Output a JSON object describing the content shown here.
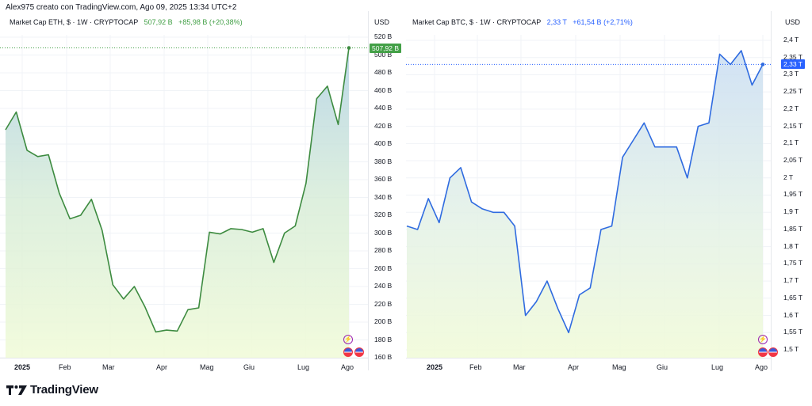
{
  "header": {
    "credit": "Alex975 creato con TradingView.com, Ago 09, 2025 13:34 UTC+2"
  },
  "footer": {
    "logo_text": "TradingView"
  },
  "panels": [
    {
      "legend": {
        "symbol": "Market Cap ETH, $ · 1W · CRYPTOCAP",
        "value": "507,92 B",
        "change": "+85,98 B (+20,38%)",
        "color": "#43a047"
      },
      "currency": "USD",
      "price_tag": "507,92 B",
      "line_color": "#3d8b40",
      "y_ticks": [
        "520 B",
        "500 B",
        "480 B",
        "460 B",
        "440 B",
        "420 B",
        "400 B",
        "380 B",
        "360 B",
        "340 B",
        "320 B",
        "300 B",
        "280 B",
        "260 B",
        "240 B",
        "220 B",
        "200 B",
        "180 B",
        "160 B"
      ],
      "x_ticks": [
        "2025",
        "Feb",
        "Mar",
        "Apr",
        "Mag",
        "Giu",
        "Lug",
        "Ago"
      ]
    },
    {
      "legend": {
        "symbol": "Market Cap BTC, $ · 1W · CRYPTOCAP",
        "value": "2,33 T",
        "change": "+61,54 B (+2,71%)",
        "color": "#2962ff"
      },
      "currency": "USD",
      "price_tag": "2,33 T",
      "line_color": "#2f6be0",
      "y_ticks": [
        "2,4 T",
        "2,35 T",
        "2,3 T",
        "2,25 T",
        "2,2 T",
        "2,15 T",
        "2,1 T",
        "2,05 T",
        "2 T",
        "1,95 T",
        "1,9 T",
        "1,85 T",
        "1,8 T",
        "1,75 T",
        "1,7 T",
        "1,65 T",
        "1,6 T",
        "1,55 T",
        "1,5 T"
      ],
      "x_ticks": [
        "2025",
        "Feb",
        "Mar",
        "Apr",
        "Mag",
        "Giu",
        "Lug",
        "Ago"
      ]
    }
  ],
  "chart_data": [
    {
      "type": "area",
      "title": "Market Cap ETH, $ · 1W · CRYPTOCAP",
      "xlabel": "",
      "ylabel": "USD",
      "unit": "B",
      "ylim": [
        160,
        525
      ],
      "x_tick_labels": [
        "2025",
        "Feb",
        "Mar",
        "Apr",
        "Mag",
        "Giu",
        "Lug",
        "Ago"
      ],
      "last_value": 507.92,
      "change": 85.98,
      "change_pct": 20.38,
      "series": [
        {
          "name": "ETH Market Cap (B USD)",
          "values": [
            416,
            436,
            393,
            386,
            388,
            345,
            316,
            320,
            338,
            303,
            242,
            226,
            240,
            217,
            189,
            191,
            190,
            214,
            216,
            301,
            299,
            305,
            304,
            301,
            305,
            267,
            300,
            308,
            356,
            451,
            465,
            422,
            508
          ]
        }
      ]
    },
    {
      "type": "area",
      "title": "Market Cap BTC, $ · 1W · CRYPTOCAP",
      "xlabel": "",
      "ylabel": "USD",
      "unit": "T",
      "ylim": [
        1.49,
        2.42
      ],
      "x_tick_labels": [
        "2025",
        "Feb",
        "Mar",
        "Apr",
        "Mag",
        "Giu",
        "Lug",
        "Ago"
      ],
      "last_value": 2.33,
      "change_B": 61.54,
      "change_pct": 2.71,
      "series": [
        {
          "name": "BTC Market Cap (T USD)",
          "values": [
            1.86,
            1.85,
            1.94,
            1.87,
            2.0,
            2.03,
            1.93,
            1.91,
            1.9,
            1.9,
            1.86,
            1.6,
            1.64,
            1.7,
            1.62,
            1.55,
            1.66,
            1.68,
            1.85,
            1.86,
            2.06,
            2.11,
            2.16,
            2.09,
            2.09,
            2.09,
            2.0,
            2.15,
            2.16,
            2.36,
            2.33,
            2.37,
            2.27,
            2.33
          ]
        }
      ]
    }
  ]
}
